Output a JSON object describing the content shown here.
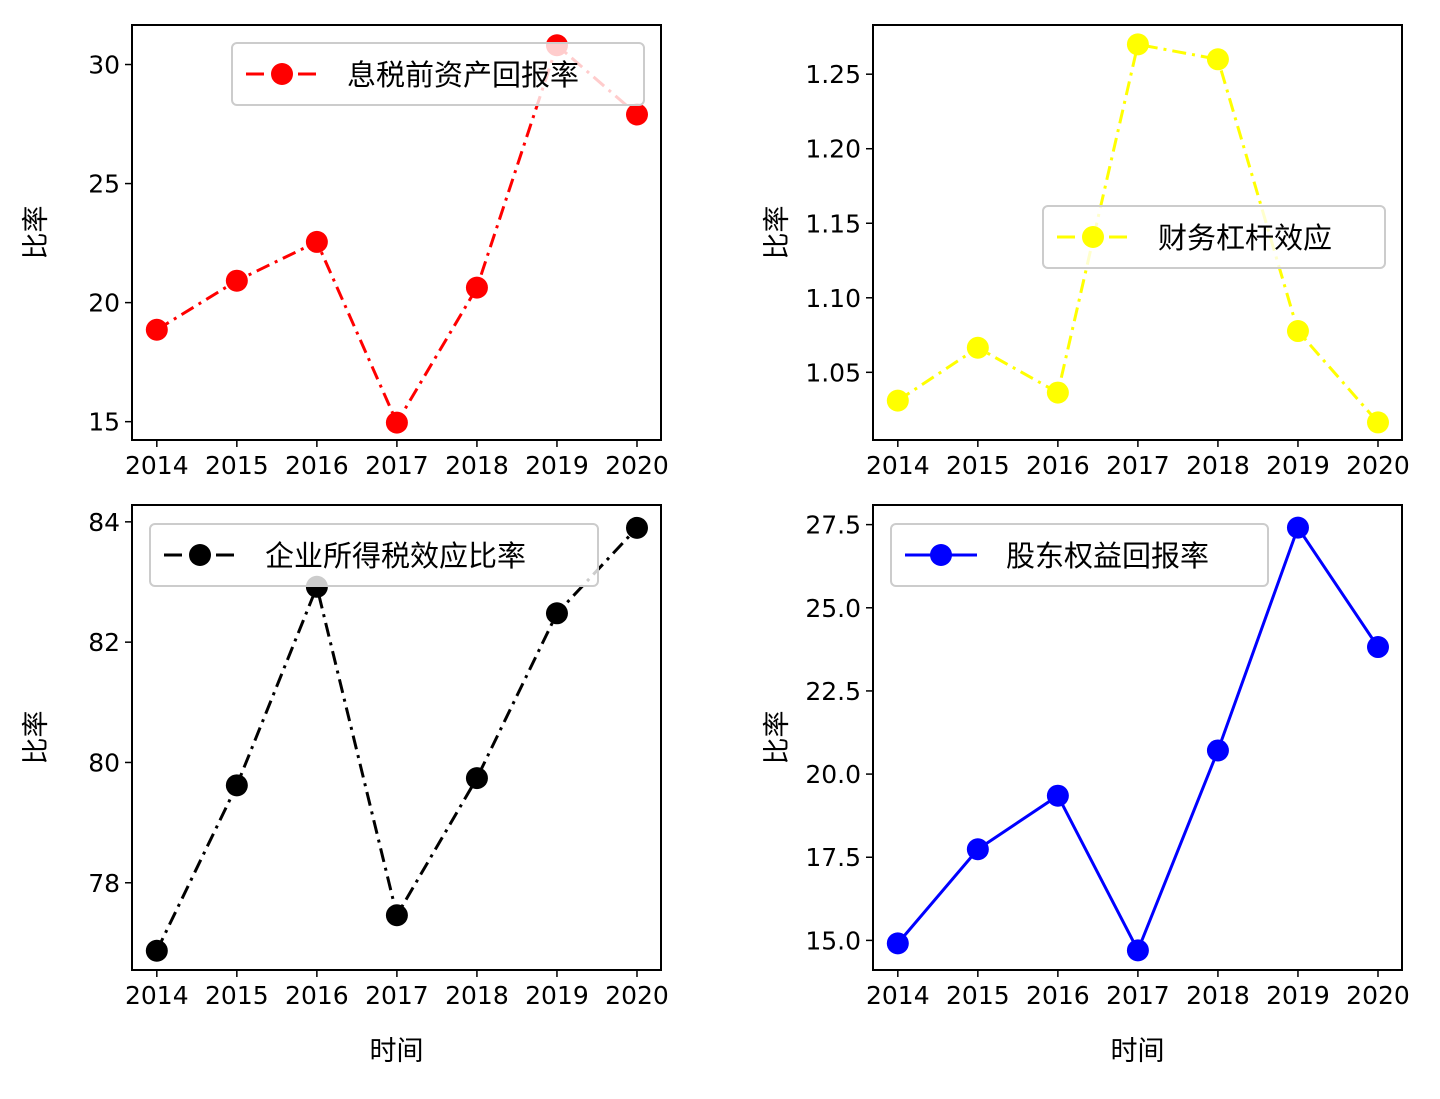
{
  "chart_data": [
    {
      "type": "line",
      "xlabel": "",
      "ylabel": "比率",
      "x": [
        2014,
        2015,
        2016,
        2017,
        2018,
        2019,
        2020
      ],
      "xlim": [
        2013.69,
        2020.3
      ],
      "ylim": [
        14.23,
        31.66
      ],
      "yticks": [
        15,
        20,
        25,
        30
      ],
      "ytick_labels": [
        "15",
        "20",
        "25",
        "30"
      ],
      "legend_position": "upper right",
      "grid": false,
      "series": [
        {
          "name": "息税前资产回报率",
          "values": [
            18.86,
            20.92,
            22.55,
            14.96,
            20.63,
            30.81,
            27.9
          ],
          "color": "#ff0000",
          "linestyle": "dashdot",
          "marker": "circle"
        }
      ]
    },
    {
      "type": "line",
      "xlabel": "",
      "ylabel": "比率",
      "x": [
        2014,
        2015,
        2016,
        2017,
        2018,
        2019,
        2020
      ],
      "xlim": [
        2013.69,
        2020.3
      ],
      "ylim": [
        1.0046,
        1.283
      ],
      "yticks": [
        1.05,
        1.1,
        1.15,
        1.2,
        1.25
      ],
      "ytick_labels": [
        "1.05",
        "1.10",
        "1.15",
        "1.20",
        "1.25"
      ],
      "legend_position": "center right",
      "grid": false,
      "series": [
        {
          "name": "财务杠杆效应",
          "values": [
            1.031,
            1.0665,
            1.0364,
            1.27,
            1.26,
            1.0777,
            1.0164
          ],
          "color": "#ffff00",
          "linestyle": "dashdot",
          "marker": "circle"
        }
      ]
    },
    {
      "type": "line",
      "xlabel": "时间",
      "ylabel": "比率",
      "x": [
        2014,
        2015,
        2016,
        2017,
        2018,
        2019,
        2020
      ],
      "xtick_labels": [
        "2014",
        "2015",
        "2016",
        "2017",
        "2018",
        "2019",
        "2020"
      ],
      "xlim": [
        2013.69,
        2020.3
      ],
      "ylim": [
        76.55,
        84.28
      ],
      "yticks": [
        78,
        80,
        82,
        84
      ],
      "ytick_labels": [
        "78",
        "80",
        "82",
        "84"
      ],
      "legend_position": "upper left",
      "grid": false,
      "series": [
        {
          "name": "企业所得税效应比率",
          "values": [
            76.87,
            79.62,
            82.92,
            77.46,
            79.74,
            82.48,
            83.9
          ],
          "color": "#000000",
          "linestyle": "dashdot",
          "marker": "circle"
        }
      ]
    },
    {
      "type": "line",
      "xlabel": "时间",
      "ylabel": "比率",
      "x": [
        2014,
        2015,
        2016,
        2017,
        2018,
        2019,
        2020
      ],
      "xtick_labels": [
        "2014",
        "2015",
        "2016",
        "2017",
        "2018",
        "2019",
        "2020"
      ],
      "xlim": [
        2013.69,
        2020.3
      ],
      "ylim": [
        14.11,
        28.09
      ],
      "yticks": [
        15.0,
        17.5,
        20.0,
        22.5,
        25.0,
        27.5
      ],
      "ytick_labels": [
        "15.0",
        "17.5",
        "20.0",
        "22.5",
        "25.0",
        "27.5"
      ],
      "legend_position": "upper left",
      "grid": false,
      "series": [
        {
          "name": "股东权益回报率",
          "values": [
            14.91,
            17.74,
            19.35,
            14.7,
            20.71,
            27.41,
            23.82
          ],
          "color": "#0000ff",
          "linestyle": "solid",
          "marker": "circle"
        }
      ]
    }
  ]
}
